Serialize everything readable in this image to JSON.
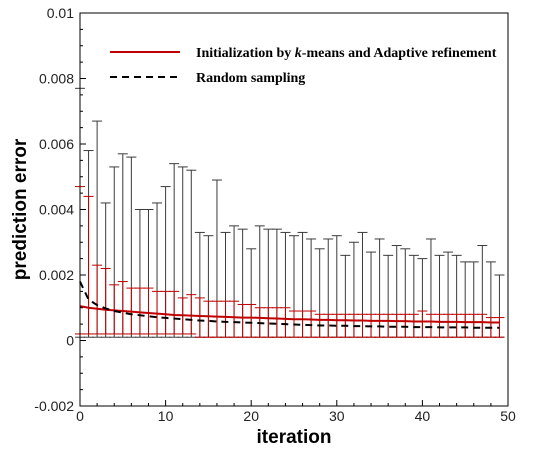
{
  "chart_data": {
    "type": "line",
    "title": "",
    "xlabel": "iteration",
    "ylabel": "prediction error",
    "xlim": [
      0,
      50
    ],
    "ylim": [
      -0.002,
      0.01
    ],
    "x_ticks": [
      0,
      10,
      20,
      30,
      40,
      50
    ],
    "x_tick_labels": [
      "0",
      "10",
      "20",
      "30",
      "40",
      "50"
    ],
    "y_ticks": [
      -0.002,
      0,
      0.002,
      0.004,
      0.006,
      0.008,
      0.01
    ],
    "y_tick_labels": [
      "-0.002",
      "0",
      "0.002",
      "0.004",
      "0.006",
      "0.008",
      "0.01"
    ],
    "grid": false,
    "legend_position": "top-right",
    "series": [
      {
        "name": "Initialization by k-means and Adaptive refinement",
        "name_prefix": "Initialization by ",
        "name_italic": "k",
        "name_suffix": "-means and Adaptive refinement",
        "style": "solid",
        "color": "#c00000",
        "x": [
          0,
          1,
          2,
          3,
          4,
          5,
          6,
          7,
          8,
          9,
          10,
          11,
          12,
          13,
          14,
          15,
          16,
          17,
          18,
          19,
          20,
          21,
          22,
          23,
          24,
          25,
          26,
          27,
          28,
          29,
          30,
          31,
          32,
          33,
          34,
          35,
          36,
          37,
          38,
          39,
          40,
          41,
          42,
          43,
          44,
          45,
          46,
          47,
          48,
          49
        ],
        "mean": [
          0.00105,
          0.001,
          0.00097,
          0.00094,
          0.00092,
          0.0009,
          0.00088,
          0.00086,
          0.00084,
          0.00082,
          0.0008,
          0.00078,
          0.00077,
          0.00076,
          0.00075,
          0.00074,
          0.00073,
          0.00072,
          0.00071,
          0.0007,
          0.0007,
          0.00069,
          0.00068,
          0.00067,
          0.00066,
          0.00065,
          0.00065,
          0.00064,
          0.00063,
          0.00063,
          0.00062,
          0.00062,
          0.00061,
          0.00061,
          0.0006,
          0.0006,
          0.0006,
          0.00059,
          0.00059,
          0.00058,
          0.00058,
          0.00058,
          0.00057,
          0.00057,
          0.00057,
          0.00056,
          0.00056,
          0.00056,
          0.00055,
          0.00055
        ],
        "upper": [
          0.0047,
          0.0044,
          0.0023,
          0.0022,
          0.0017,
          0.0018,
          0.0016,
          0.0016,
          0.0016,
          0.0015,
          0.0015,
          0.0015,
          0.0013,
          0.0014,
          0.0013,
          0.0012,
          0.0012,
          0.0012,
          0.0012,
          0.0011,
          0.0011,
          0.001,
          0.001,
          0.001,
          0.001,
          0.0009,
          0.0009,
          0.0009,
          0.0008,
          0.0008,
          0.0008,
          0.0008,
          0.0008,
          0.0008,
          0.0008,
          0.0008,
          0.0008,
          0.0008,
          0.0008,
          0.0008,
          0.0009,
          0.0008,
          0.0008,
          0.0008,
          0.0008,
          0.0008,
          0.0008,
          0.0008,
          0.0007,
          0.0007
        ],
        "lower": [
          0.0002,
          0.0002,
          0.0002,
          0.0002,
          0.0002,
          0.0002,
          0.0002,
          0.0002,
          0.0002,
          0.0002,
          0.0002,
          0.0002,
          0.0002,
          0.0002,
          0.0001,
          0.0001,
          0.0001,
          0.0001,
          0.0001,
          0.0001,
          0.0001,
          0.0001,
          0.0001,
          0.0001,
          0.0001,
          0.0001,
          0.0001,
          0.0001,
          0.0001,
          0.0001,
          0.0001,
          0.0001,
          0.0001,
          0.0001,
          0.0001,
          0.0001,
          0.0001,
          0.0001,
          0.0001,
          0.0001,
          0.0001,
          0.0001,
          0.0001,
          0.0001,
          0.0001,
          0.0001,
          0.0001,
          0.0001,
          0.0001,
          0.0001
        ]
      },
      {
        "name": "Random sampling",
        "style": "dashed",
        "color": "#000000",
        "x": [
          0,
          1,
          2,
          3,
          4,
          5,
          6,
          7,
          8,
          9,
          10,
          11,
          12,
          13,
          14,
          15,
          16,
          17,
          18,
          19,
          20,
          21,
          22,
          23,
          24,
          25,
          26,
          27,
          28,
          29,
          30,
          31,
          32,
          33,
          34,
          35,
          36,
          37,
          38,
          39,
          40,
          41,
          42,
          43,
          44,
          45,
          46,
          47,
          48,
          49
        ],
        "mean": [
          0.0018,
          0.00125,
          0.00108,
          0.00098,
          0.0009,
          0.00085,
          0.0008,
          0.00077,
          0.00074,
          0.00071,
          0.00069,
          0.00067,
          0.00065,
          0.00063,
          0.00061,
          0.0006,
          0.00058,
          0.00057,
          0.00056,
          0.00055,
          0.00054,
          0.00053,
          0.00052,
          0.00051,
          0.0005,
          0.00049,
          0.00048,
          0.00047,
          0.00046,
          0.00046,
          0.00045,
          0.00045,
          0.00044,
          0.00044,
          0.00043,
          0.00043,
          0.00042,
          0.00042,
          0.00042,
          0.00041,
          0.00041,
          0.00041,
          0.0004,
          0.0004,
          0.0004,
          0.0004,
          0.00039,
          0.00039,
          0.00039,
          0.00039
        ],
        "upper": [
          0.0077,
          0.0058,
          0.0067,
          0.0042,
          0.0053,
          0.0057,
          0.0056,
          0.004,
          0.004,
          0.0042,
          0.0047,
          0.0054,
          0.0053,
          0.0052,
          0.0033,
          0.0032,
          0.0049,
          0.0033,
          0.0035,
          0.0034,
          0.0028,
          0.0035,
          0.0034,
          0.0034,
          0.0033,
          0.0032,
          0.0033,
          0.0031,
          0.0028,
          0.0031,
          0.0032,
          0.0026,
          0.003,
          0.0033,
          0.0027,
          0.0031,
          0.0026,
          0.0029,
          0.0028,
          0.0026,
          0.0025,
          0.0031,
          0.0026,
          0.0027,
          0.0026,
          0.0024,
          0.0024,
          0.0029,
          0.0024,
          0.002
        ],
        "lower": [
          0.0001,
          0.0001,
          0.0001,
          0.0001,
          0.0001,
          0.0001,
          0.0001,
          0.0001,
          0.0001,
          0.0001,
          0.0001,
          0.0001,
          0.0001,
          0.0001,
          0.0001,
          0.0001,
          0.0001,
          0.0001,
          0.0001,
          0.0001,
          0.0001,
          0.0001,
          0.0001,
          0.0001,
          0.0001,
          0.0001,
          0.0001,
          0.0001,
          0.0001,
          0.0001,
          0.0001,
          0.0001,
          0.0001,
          0.0001,
          0.0001,
          0.0001,
          0.0001,
          0.0001,
          0.0001,
          0.0001,
          0.0001,
          0.0001,
          0.0001,
          0.0001,
          0.0001,
          0.0001,
          0.0001,
          0.0001,
          0.0001,
          0.0001
        ]
      }
    ]
  }
}
